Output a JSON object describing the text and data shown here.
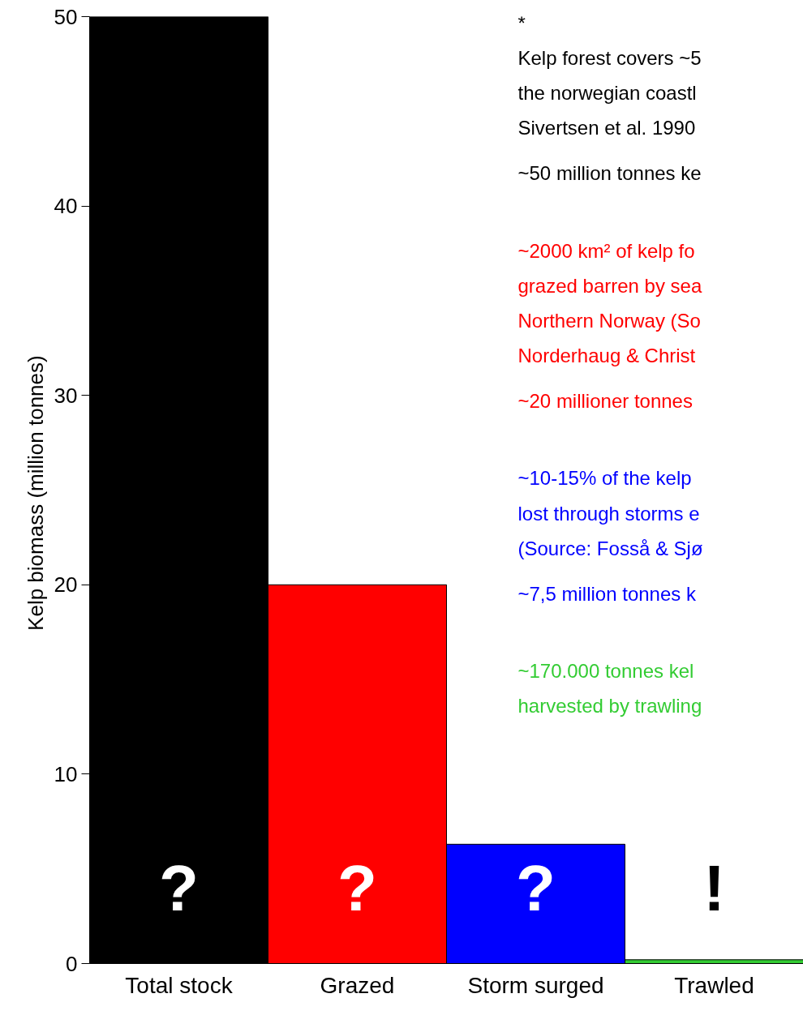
{
  "chart_data": {
    "type": "bar",
    "categories": [
      "Total stock",
      "Grazed",
      "Storm surged",
      "Trawled"
    ],
    "values": [
      50,
      20,
      6.3,
      0.2
    ],
    "colors": [
      "#000000",
      "#ff0000",
      "#0000ff",
      "#33cc33"
    ],
    "ylabel": "Kelp biomass  (million tonnes)",
    "ylim": [
      0,
      50
    ],
    "yticks": [
      0,
      10,
      20,
      30,
      40,
      50
    ],
    "grid": false,
    "annotations": [
      "*",
      "Kelp forest covers ~5\nthe norwegian coastl\nSivertsen et al. 1990",
      "~50 million tonnes ke",
      "~2000 km² of kelp fo\ngrazed barren by sea\nNorthern Norway (So\nNorderhaug & Christ",
      "~20 millioner tonnes",
      "~10-15% of the kelp\nlost through storms e\n(Source: Fosså & Sjø",
      "~7,5 million tonnes k",
      "~170.000 tonnes kel\nharvested by trawling",
      "?",
      "?",
      "?",
      "!"
    ]
  }
}
